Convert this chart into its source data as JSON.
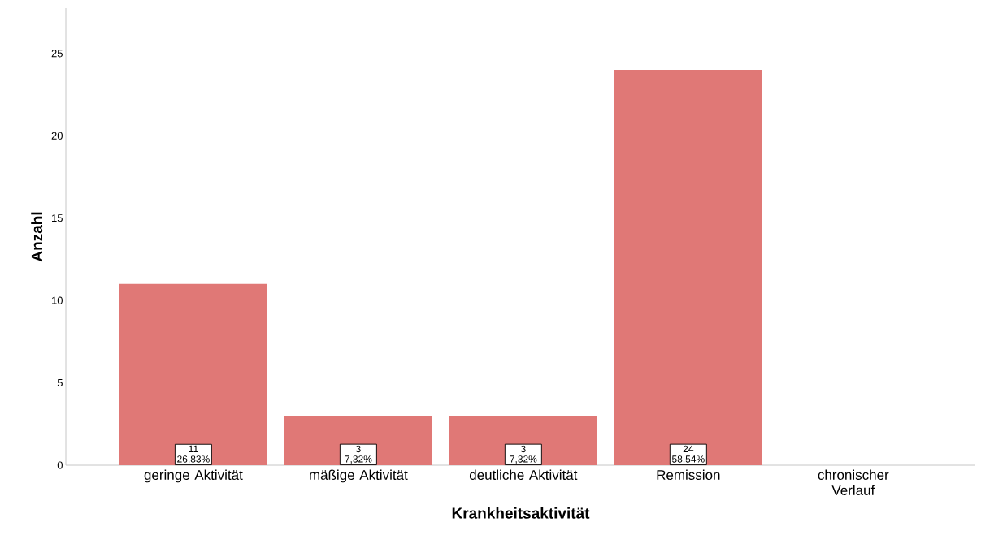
{
  "chart_data": {
    "type": "bar",
    "xlabel": "Krankheitsaktivität",
    "ylabel": "Anzahl",
    "categories": [
      "geringe Aktivität",
      "mäßige Aktivität",
      "deutliche Aktivität",
      "Remission",
      "chronischer Verlauf"
    ],
    "values": [
      11,
      3,
      3,
      24,
      0
    ],
    "value_labels": [
      "11 26,83%",
      "3 7,32%",
      "3 7,32%",
      "24 58,54%",
      null
    ],
    "color": "#e07876",
    "ylim": [
      0,
      27.75
    ],
    "yticks": [
      0,
      5,
      10,
      15,
      20,
      25
    ],
    "grid": false
  }
}
